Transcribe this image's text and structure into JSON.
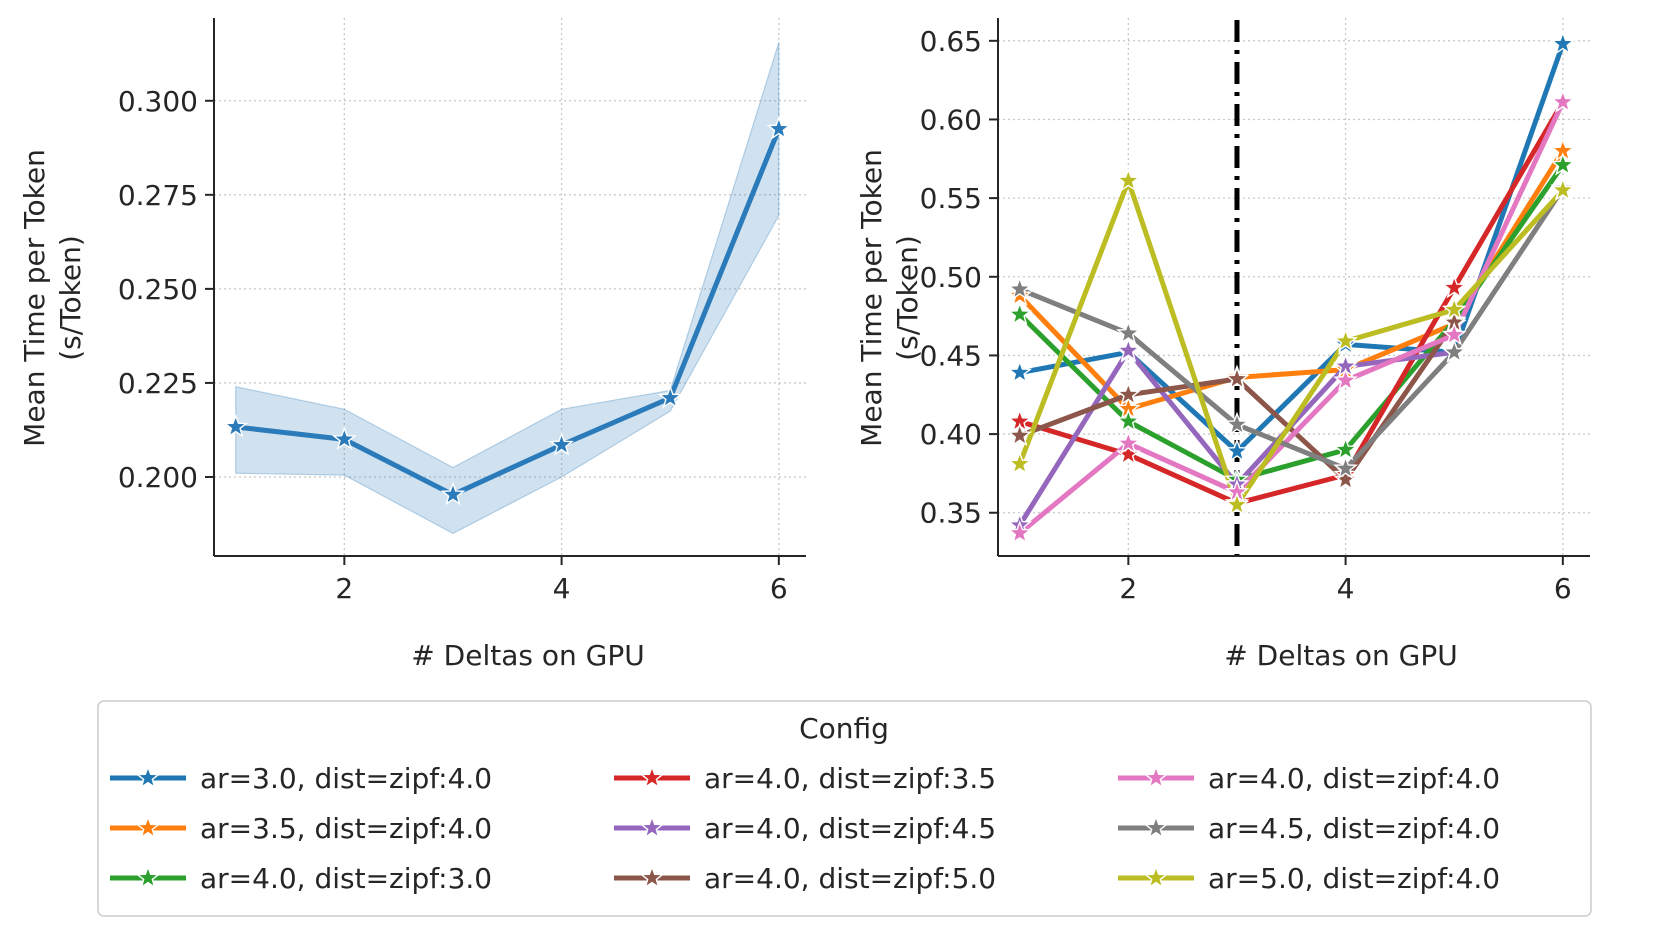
{
  "chart_data": [
    {
      "type": "line",
      "panel": "left",
      "xlabel": "# Deltas on GPU",
      "ylabel_lines": [
        "Mean Time per Token",
        "(s/Token)"
      ],
      "xlim": [
        0.8,
        6.25
      ],
      "ylim": [
        0.179,
        0.322
      ],
      "xticks": [
        2,
        4,
        6
      ],
      "yticks": [
        0.2,
        0.225,
        0.25,
        0.275,
        0.3
      ],
      "ytick_labels": [
        "0.200",
        "0.225",
        "0.250",
        "0.275",
        "0.300"
      ],
      "grid": true,
      "series": [
        {
          "name": "mean",
          "color": "#2b7bba",
          "x": [
            1,
            2,
            3,
            4,
            5,
            6
          ],
          "y": [
            0.2133,
            0.21,
            0.1953,
            0.2085,
            0.221,
            0.2925
          ],
          "ci_low": [
            0.201,
            0.2005,
            0.185,
            0.2,
            0.2175,
            0.2695
          ],
          "ci_high": [
            0.224,
            0.218,
            0.2025,
            0.218,
            0.223,
            0.3155
          ]
        }
      ]
    },
    {
      "type": "line",
      "panel": "right",
      "xlabel": "# Deltas on GPU",
      "ylabel_lines": [
        "Mean Time per Token",
        "(s/Token)"
      ],
      "xlim": [
        0.8,
        6.25
      ],
      "ylim": [
        0.3225,
        0.6645
      ],
      "xticks": [
        2,
        4,
        6
      ],
      "yticks": [
        0.35,
        0.4,
        0.45,
        0.5,
        0.55,
        0.6,
        0.65
      ],
      "ytick_labels": [
        "0.35",
        "0.40",
        "0.45",
        "0.50",
        "0.55",
        "0.60",
        "0.65"
      ],
      "grid": true,
      "vline": {
        "x": 3,
        "style": "dashdot",
        "color": "#000000"
      },
      "series": [
        {
          "name": "ar=3.0, dist=zipf:4.0",
          "color": "#1f77b4",
          "x": [
            1,
            2,
            3,
            4,
            5,
            6
          ],
          "y": [
            0.439,
            0.452,
            0.389,
            0.457,
            0.452,
            0.648
          ]
        },
        {
          "name": "ar=3.5, dist=zipf:4.0",
          "color": "#ff7f0e",
          "x": [
            1,
            2,
            3,
            4,
            5,
            6
          ],
          "y": [
            0.488,
            0.416,
            0.436,
            0.441,
            0.47,
            0.58
          ]
        },
        {
          "name": "ar=4.0, dist=zipf:3.0",
          "color": "#2ca02c",
          "x": [
            1,
            2,
            3,
            4,
            5,
            6
          ],
          "y": [
            0.476,
            0.408,
            0.371,
            0.39,
            0.472,
            0.571
          ]
        },
        {
          "name": "ar=4.0, dist=zipf:3.5",
          "color": "#d62728",
          "x": [
            1,
            2,
            3,
            4,
            5,
            6
          ],
          "y": [
            0.408,
            0.387,
            0.356,
            0.374,
            0.493,
            0.611
          ]
        },
        {
          "name": "ar=4.0, dist=zipf:4.5",
          "color": "#9467bd",
          "x": [
            1,
            2,
            3,
            4,
            5,
            6
          ],
          "y": [
            0.342,
            0.453,
            0.368,
            0.443,
            0.452,
            null
          ]
        },
        {
          "name": "ar=4.0, dist=zipf:5.0",
          "color": "#8c564b",
          "x": [
            1,
            2,
            3,
            4,
            5,
            6
          ],
          "y": [
            0.399,
            0.425,
            0.435,
            0.371,
            0.471,
            null
          ]
        },
        {
          "name": "ar=4.0, dist=zipf:4.0",
          "color": "#e377c2",
          "x": [
            1,
            2,
            3,
            4,
            5,
            6
          ],
          "y": [
            0.337,
            0.394,
            0.363,
            0.434,
            0.463,
            0.611
          ]
        },
        {
          "name": "ar=4.5, dist=zipf:4.0",
          "color": "#7f7f7f",
          "x": [
            1,
            2,
            3,
            4,
            5,
            6
          ],
          "y": [
            0.492,
            0.464,
            0.406,
            0.378,
            0.452,
            0.556
          ]
        },
        {
          "name": "ar=5.0, dist=zipf:4.0",
          "color": "#bcbd22",
          "x": [
            1,
            2,
            3,
            4,
            5,
            6
          ],
          "y": [
            0.381,
            0.561,
            0.355,
            0.459,
            0.479,
            0.555
          ]
        }
      ]
    }
  ],
  "legend": {
    "title": "Config",
    "placement": "bottom-center",
    "columns": [
      [
        "ar=3.0, dist=zipf:4.0",
        "ar=3.5, dist=zipf:4.0",
        "ar=4.0, dist=zipf:3.0"
      ],
      [
        "ar=4.0, dist=zipf:3.5",
        "ar=4.0, dist=zipf:4.5",
        "ar=4.0, dist=zipf:5.0"
      ],
      [
        "ar=4.0, dist=zipf:4.0",
        "ar=4.5, dist=zipf:4.0",
        "ar=5.0, dist=zipf:4.0"
      ]
    ]
  }
}
